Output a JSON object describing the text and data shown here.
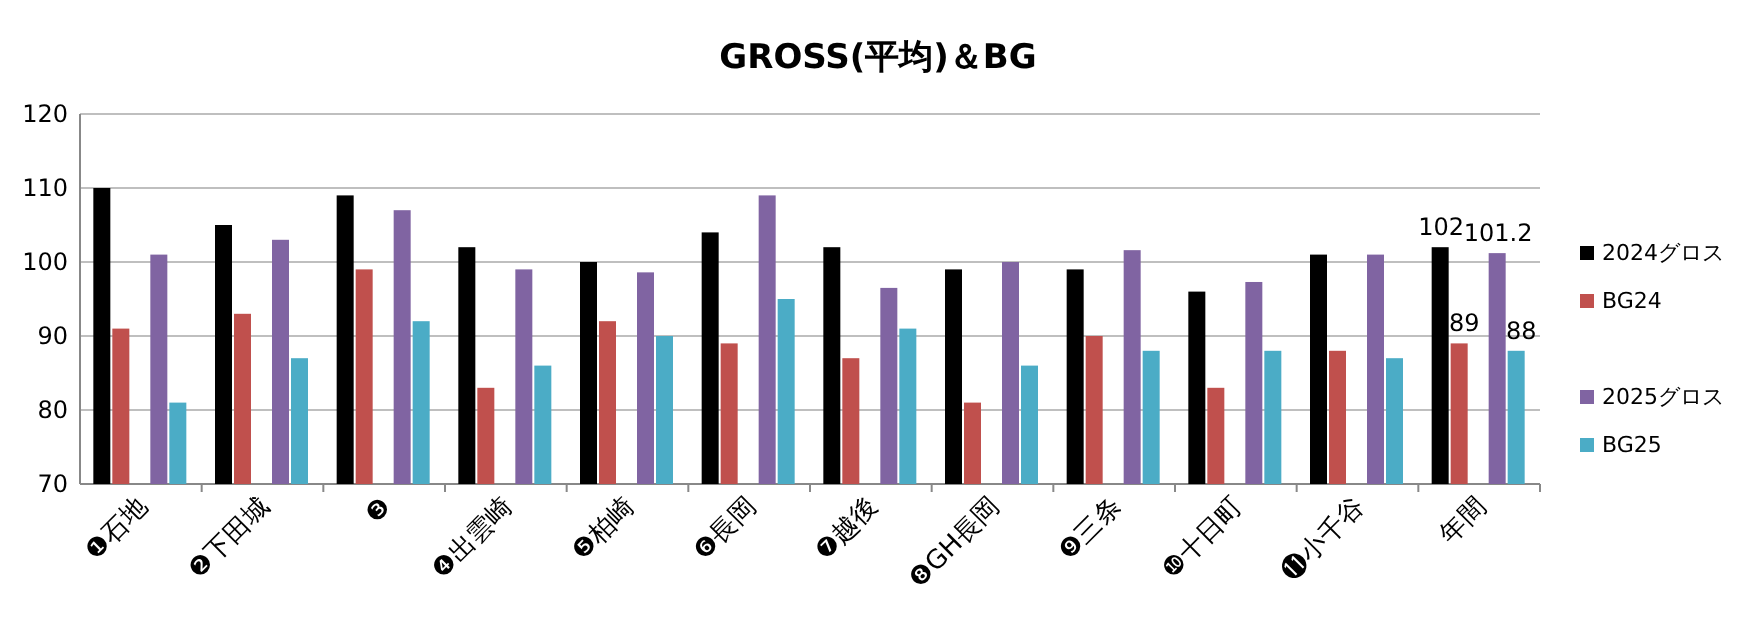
{
  "chart_data": {
    "type": "bar",
    "title": "GROSS(平均)＆BG",
    "categories": [
      "❶石地",
      "❷下田城",
      "❸",
      "❹出雲崎",
      "❺柏崎",
      "❻長岡",
      "❼越後",
      "❽GH長岡",
      "❾三条",
      "❿十日町",
      "⓫小千谷",
      "年間"
    ],
    "series": [
      {
        "name": "2024グロス",
        "color": "#000000",
        "values": [
          110,
          105,
          109,
          102,
          100,
          104,
          102,
          99,
          99,
          96,
          101,
          102
        ],
        "value_labels": [
          null,
          null,
          null,
          null,
          null,
          null,
          null,
          null,
          null,
          null,
          null,
          "102"
        ]
      },
      {
        "name": "BG24",
        "color": "#c0504d",
        "values": [
          91,
          93,
          99,
          83,
          92,
          89,
          87,
          81,
          90,
          83,
          88,
          89
        ],
        "value_labels": [
          null,
          null,
          null,
          null,
          null,
          null,
          null,
          null,
          null,
          null,
          null,
          "89"
        ]
      },
      {
        "name": "2025グロス",
        "color": "#8064a2",
        "values": [
          101,
          103,
          107,
          99,
          98.6,
          109,
          96.5,
          100,
          101.6,
          97.3,
          101,
          101.2
        ],
        "value_labels": [
          null,
          null,
          null,
          null,
          null,
          null,
          null,
          null,
          null,
          null,
          null,
          "101.2"
        ]
      },
      {
        "name": "BG25",
        "color": "#4bacc6",
        "values": [
          81,
          87,
          92,
          86,
          90,
          95,
          91,
          86,
          88,
          88,
          87,
          88
        ],
        "value_labels": [
          null,
          null,
          null,
          null,
          null,
          null,
          null,
          null,
          null,
          null,
          null,
          "88"
        ]
      }
    ],
    "ylim": [
      70,
      120
    ],
    "yticks": [
      70,
      80,
      90,
      100,
      110,
      120
    ],
    "grid": "y",
    "legend": "right"
  }
}
